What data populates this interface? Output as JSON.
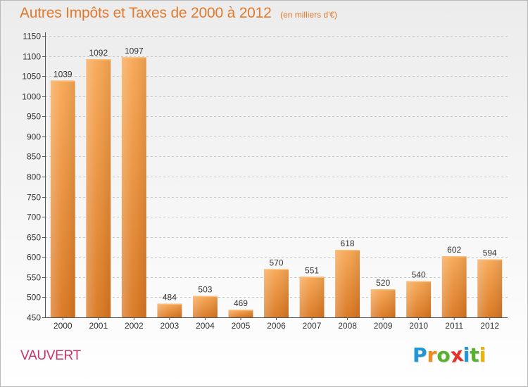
{
  "chart_data": {
    "type": "bar",
    "title": "Autres Impôts et Taxes de 2000 à 2012",
    "subtitle": "(en milliers d'€)",
    "categories": [
      "2000",
      "2001",
      "2002",
      "2003",
      "2004",
      "2005",
      "2006",
      "2007",
      "2008",
      "2009",
      "2010",
      "2011",
      "2012"
    ],
    "values": [
      1039,
      1092,
      1097,
      484,
      503,
      469,
      570,
      551,
      618,
      520,
      540,
      602,
      594
    ],
    "ylim": [
      450,
      1150
    ],
    "yticks": [
      450,
      500,
      550,
      600,
      650,
      700,
      750,
      800,
      850,
      900,
      950,
      1000,
      1050,
      1100,
      1150
    ],
    "grid": true,
    "bar_color": "#f0903a",
    "label": "VAUVERT"
  },
  "logo": {
    "letters": [
      "P",
      "r",
      "o",
      "x",
      "i",
      "t",
      "i"
    ],
    "colors": [
      "#1f97d4",
      "#f08c1c",
      "#59b130",
      "#e1332a",
      "#1f97d4",
      "#59b130",
      "#f0b400"
    ]
  }
}
